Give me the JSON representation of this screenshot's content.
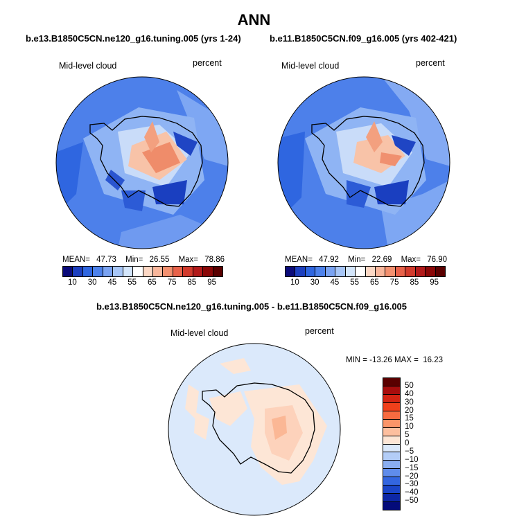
{
  "title": "ANN",
  "chart_data": [
    {
      "type": "heatmap",
      "projection": "south-polar-stereographic",
      "title": "b.e13.B1850C5CN.ne120_g16.tuning.005 (yrs 1-24)",
      "left_label": "Mid-level cloud",
      "right_label": "percent",
      "stats": {
        "mean_label": "MEAN=",
        "mean": "47.73",
        "min_label": "Min=",
        "min": "26.55",
        "max_label": "Max=",
        "max": "78.86"
      },
      "colorbar": {
        "orientation": "horizontal",
        "levels": [
          10,
          20,
          30,
          40,
          45,
          50,
          55,
          60,
          65,
          70,
          75,
          80,
          85,
          90,
          95
        ],
        "tick_labels": [
          "10",
          "30",
          "45",
          "55",
          "65",
          "75",
          "85",
          "95"
        ],
        "colors": [
          "#0b0b7a",
          "#1c3fbf",
          "#2f66e0",
          "#4d82ec",
          "#7aa3f2",
          "#a7c6f7",
          "#d4e6fb",
          "#ffffff",
          "#fcd8c5",
          "#f9b79c",
          "#f3906f",
          "#e8624a",
          "#d23a2c",
          "#b21a1a",
          "#8a0707",
          "#5a0000"
        ]
      }
    },
    {
      "type": "heatmap",
      "projection": "south-polar-stereographic",
      "title": "b.e11.B1850C5CN.f09_g16.005 (yrs 402-421)",
      "left_label": "Mid-level cloud",
      "right_label": "percent",
      "stats": {
        "mean_label": "MEAN=",
        "mean": "47.92",
        "min_label": "Min=",
        "min": "22.69",
        "max_label": "Max=",
        "max": "76.90"
      },
      "colorbar": {
        "orientation": "horizontal",
        "levels": [
          10,
          20,
          30,
          40,
          45,
          50,
          55,
          60,
          65,
          70,
          75,
          80,
          85,
          90,
          95
        ],
        "tick_labels": [
          "10",
          "30",
          "45",
          "55",
          "65",
          "75",
          "85",
          "95"
        ],
        "colors": [
          "#0b0b7a",
          "#1c3fbf",
          "#2f66e0",
          "#4d82ec",
          "#7aa3f2",
          "#a7c6f7",
          "#d4e6fb",
          "#ffffff",
          "#fcd8c5",
          "#f9b79c",
          "#f3906f",
          "#e8624a",
          "#d23a2c",
          "#b21a1a",
          "#8a0707",
          "#5a0000"
        ]
      }
    },
    {
      "type": "heatmap",
      "projection": "south-polar-stereographic",
      "title": "b.e13.B1850C5CN.ne120_g16.tuning.005 - b.e11.B1850C5CN.f09_g16.005",
      "left_label": "Mid-level cloud",
      "right_label": "percent",
      "stats": {
        "text": "MIN = -13.26 MAX =  16.23",
        "min": -13.26,
        "max": 16.23
      },
      "colorbar": {
        "orientation": "vertical",
        "levels": [
          -50,
          -40,
          -30,
          -20,
          -15,
          -10,
          -5,
          0,
          5,
          10,
          15,
          20,
          30,
          40,
          50
        ],
        "tick_labels": [
          "50",
          "40",
          "30",
          "20",
          "15",
          "10",
          "5",
          "0",
          "−5",
          "−10",
          "−15",
          "−20",
          "−30",
          "−40",
          "−50"
        ],
        "colors": [
          "#5a0000",
          "#a80d0d",
          "#d42413",
          "#f0401b",
          "#f76b40",
          "#fa9569",
          "#fdbf9f",
          "#fde6d6",
          "#dbe9fb",
          "#b3cdf7",
          "#8aaef1",
          "#5f8ceb",
          "#3366e0",
          "#1a45c8",
          "#0d27a6",
          "#040b7a"
        ]
      }
    }
  ]
}
